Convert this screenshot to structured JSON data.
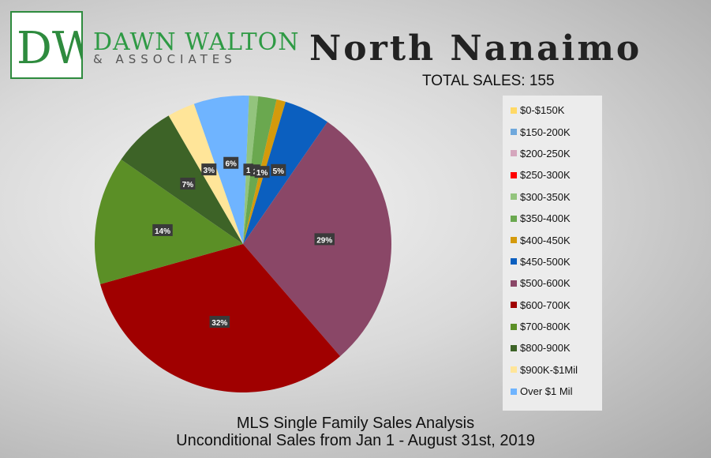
{
  "brand": {
    "logo_mark": "DW",
    "name": "DAWN WALTON",
    "subtitle": "& ASSOCIATES",
    "colors": {
      "green": "#2e9a44",
      "logo_border": "#2e8b3e"
    }
  },
  "header": {
    "title": "North Nanaimo",
    "total_sales": "TOTAL SALES: 155"
  },
  "footer": {
    "line1": "MLS Single Family Sales Analysis",
    "line2": "Unconditional Sales from Jan 1 - August 31st, 2019"
  },
  "chart_data": {
    "type": "pie",
    "title": "North Nanaimo",
    "subtitle": "TOTAL SALES: 155",
    "legend_position": "right",
    "slices": [
      {
        "label": "$0-$150K",
        "value": 0,
        "display": "",
        "color": "#ffd966"
      },
      {
        "label": "$150-200K",
        "value": 0,
        "display": "",
        "color": "#6fa8dc"
      },
      {
        "label": "$200-250K",
        "value": 0,
        "display": "",
        "color": "#d5a6bd"
      },
      {
        "label": "$250-300K",
        "value": 0,
        "display": "",
        "color": "#ff0000"
      },
      {
        "label": "$300-350K",
        "value": 1,
        "display": "1",
        "color": "#93c47d"
      },
      {
        "label": "$350-400K",
        "value": 2,
        "display": "2",
        "color": "#6aa84f"
      },
      {
        "label": "$400-450K",
        "value": 1,
        "display": "1%",
        "color": "#d49a0c"
      },
      {
        "label": "$450-500K",
        "value": 5,
        "display": "5%",
        "color": "#0b5fbf"
      },
      {
        "label": "$500-600K",
        "value": 29,
        "display": "29%",
        "color": "#8a4767"
      },
      {
        "label": "$600-700K",
        "value": 32,
        "display": "32%",
        "color": "#a00000"
      },
      {
        "label": "$700-800K",
        "value": 14,
        "display": "14%",
        "color": "#5b8f26"
      },
      {
        "label": "$800-900K",
        "value": 7,
        "display": "7%",
        "color": "#3d6327"
      },
      {
        "label": "$900K-$1Mil",
        "value": 3,
        "display": "3%",
        "color": "#ffe599"
      },
      {
        "label": "Over $1 Mil",
        "value": 6,
        "display": "6%",
        "color": "#6fb4ff"
      }
    ]
  }
}
